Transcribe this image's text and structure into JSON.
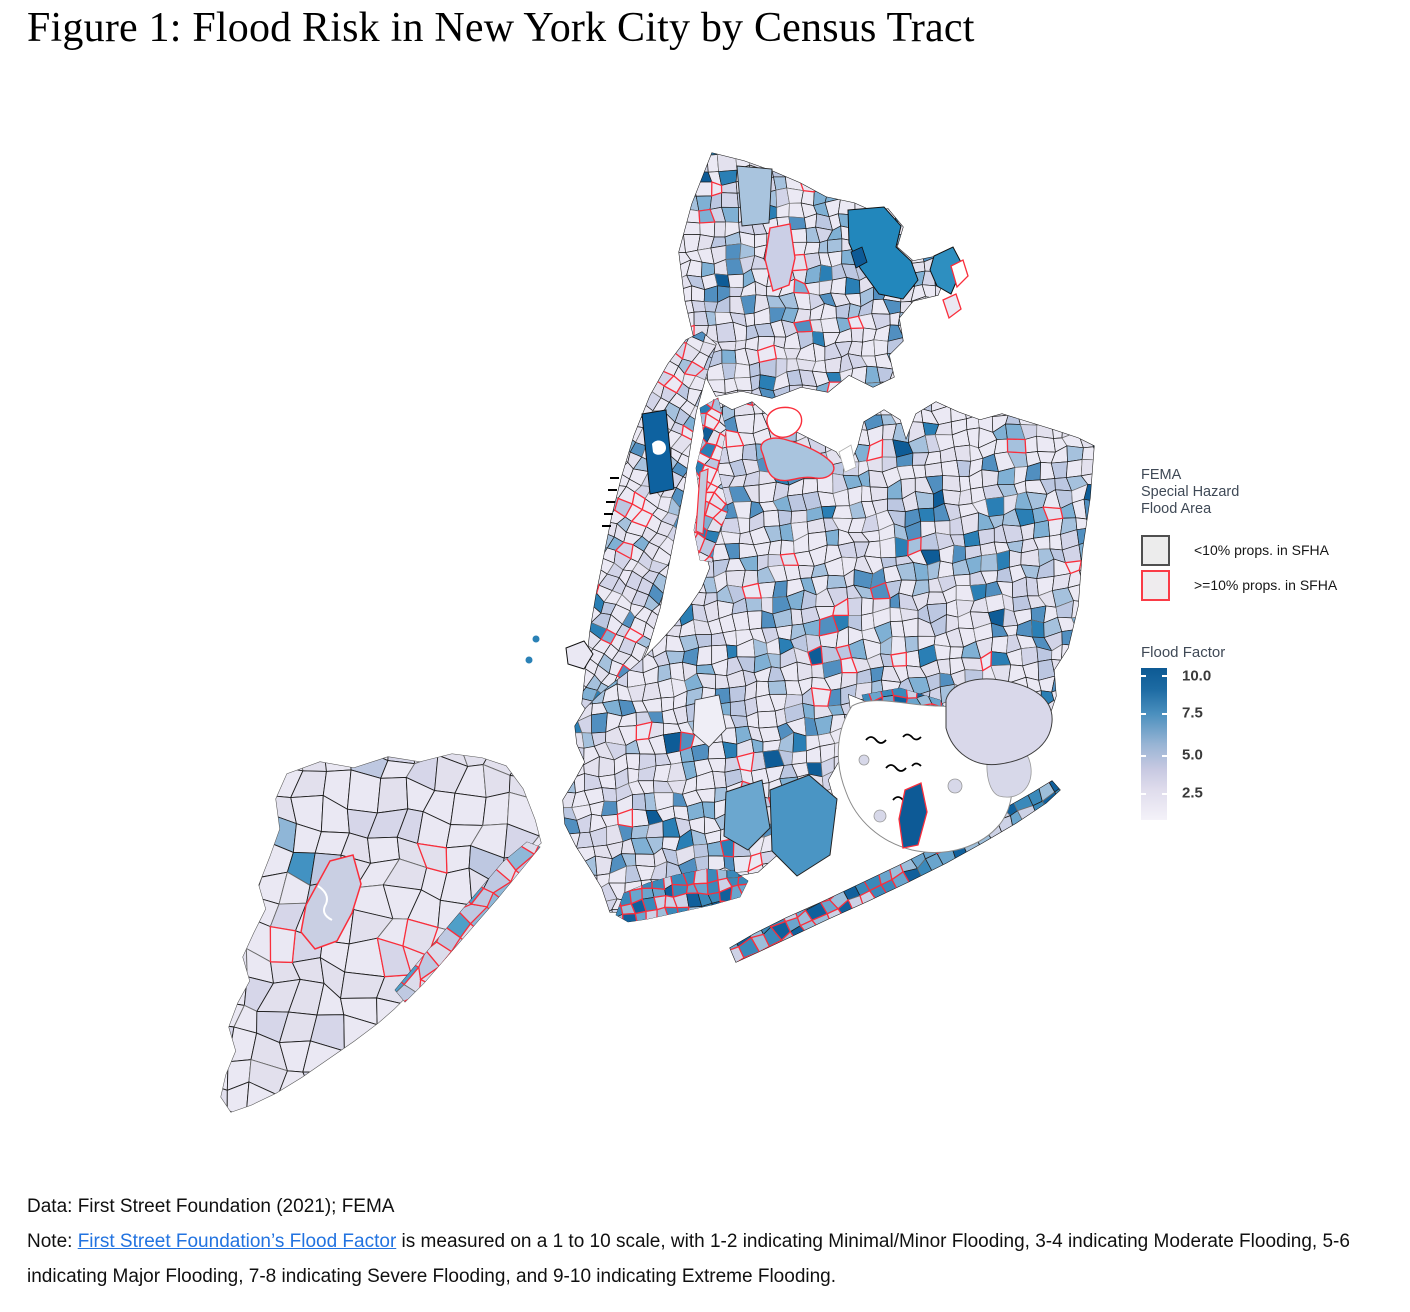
{
  "title": "Figure 1: Flood Risk in New York City by Census Tract",
  "legend_fema": {
    "title_lines": [
      "FEMA",
      "Special Hazard",
      "Flood Area"
    ],
    "items": [
      {
        "label": "<10% props. in SFHA",
        "swatch_fill": "#ececec",
        "swatch_border": "#4f4f4f"
      },
      {
        "label": ">=10% props. in SFHA",
        "swatch_fill": "#efecee",
        "swatch_border": "#fa3b46"
      }
    ]
  },
  "legend_flood": {
    "title": "Flood Factor",
    "ticks": [
      "10.0",
      "7.5",
      "5.0",
      "2.5"
    ],
    "gradient_stops": [
      "#0d5a94 0%",
      "#1d6ba3 14%",
      "#4a8fbe 30%",
      "#97b4d4 50%",
      "#c6c8e1 66%",
      "#dfdcec 80%",
      "#f4f2f9 100%"
    ]
  },
  "map": {
    "base_fill": "#eae8f3",
    "tract_stroke": "#1f1f1f",
    "gray_stroke": "#6e6e6e",
    "coast_stroke": "#161616",
    "sfha_stroke": "#fa2e3b",
    "water_color": "#ffffff",
    "park_dark_blue": "#0e62a0",
    "pelham_teal": "#2287bc",
    "deep_navy": "#0d5a96",
    "light_blue": "#a9c4de",
    "mid_blue": "#4a95c4",
    "island_fill": "#d7d8e9",
    "palettes": {
      "main": [
        [
          "#ebe9f4",
          0.4
        ],
        [
          "#e3e1ee",
          0.16
        ],
        [
          "#d2d4e8",
          0.12
        ],
        [
          "#bcc7e1",
          0.09
        ],
        [
          "#a5c1dd",
          0.08
        ],
        [
          "#7fb0d4",
          0.06
        ],
        [
          "#518fc0",
          0.04
        ],
        [
          "#2a7fb5",
          0.03
        ],
        [
          "#0e5c97",
          0.02
        ]
      ],
      "pale": [
        [
          "#eae8f3",
          0.46
        ],
        [
          "#e2e0ed",
          0.3
        ],
        [
          "#d6d6e9",
          0.16
        ],
        [
          "#bec8e1",
          0.05
        ],
        [
          "#8fb6d7",
          0.02
        ],
        [
          "#4292c2",
          0.01
        ]
      ],
      "blue": [
        [
          "#9dbeda",
          0.16
        ],
        [
          "#6aa5cd",
          0.22
        ],
        [
          "#3a89ba",
          0.28
        ],
        [
          "#10609c",
          0.2
        ],
        [
          "#cdd2e6",
          0.14
        ]
      ],
      "siblue": [
        [
          "#dcdceb",
          0.35
        ],
        [
          "#bfc9e2",
          0.25
        ],
        [
          "#8fb8d8",
          0.2
        ],
        [
          "#4f9fc8",
          0.2
        ]
      ]
    }
  },
  "footer": {
    "data_line": "Data: First Street Foundation (2021); FEMA",
    "note_prefix": "Note: ",
    "link_text": "First Street Foundation’s Flood Factor",
    "note_suffix": " is measured on a 1 to 10 scale, with 1-2 indicating Minimal/Minor Flooding, 3-4 indicating Moderate Flooding, 5-6 indicating Major Flooding, 7-8 indicating Severe Flooding, and 9-10 indicating Extreme Flooding."
  }
}
